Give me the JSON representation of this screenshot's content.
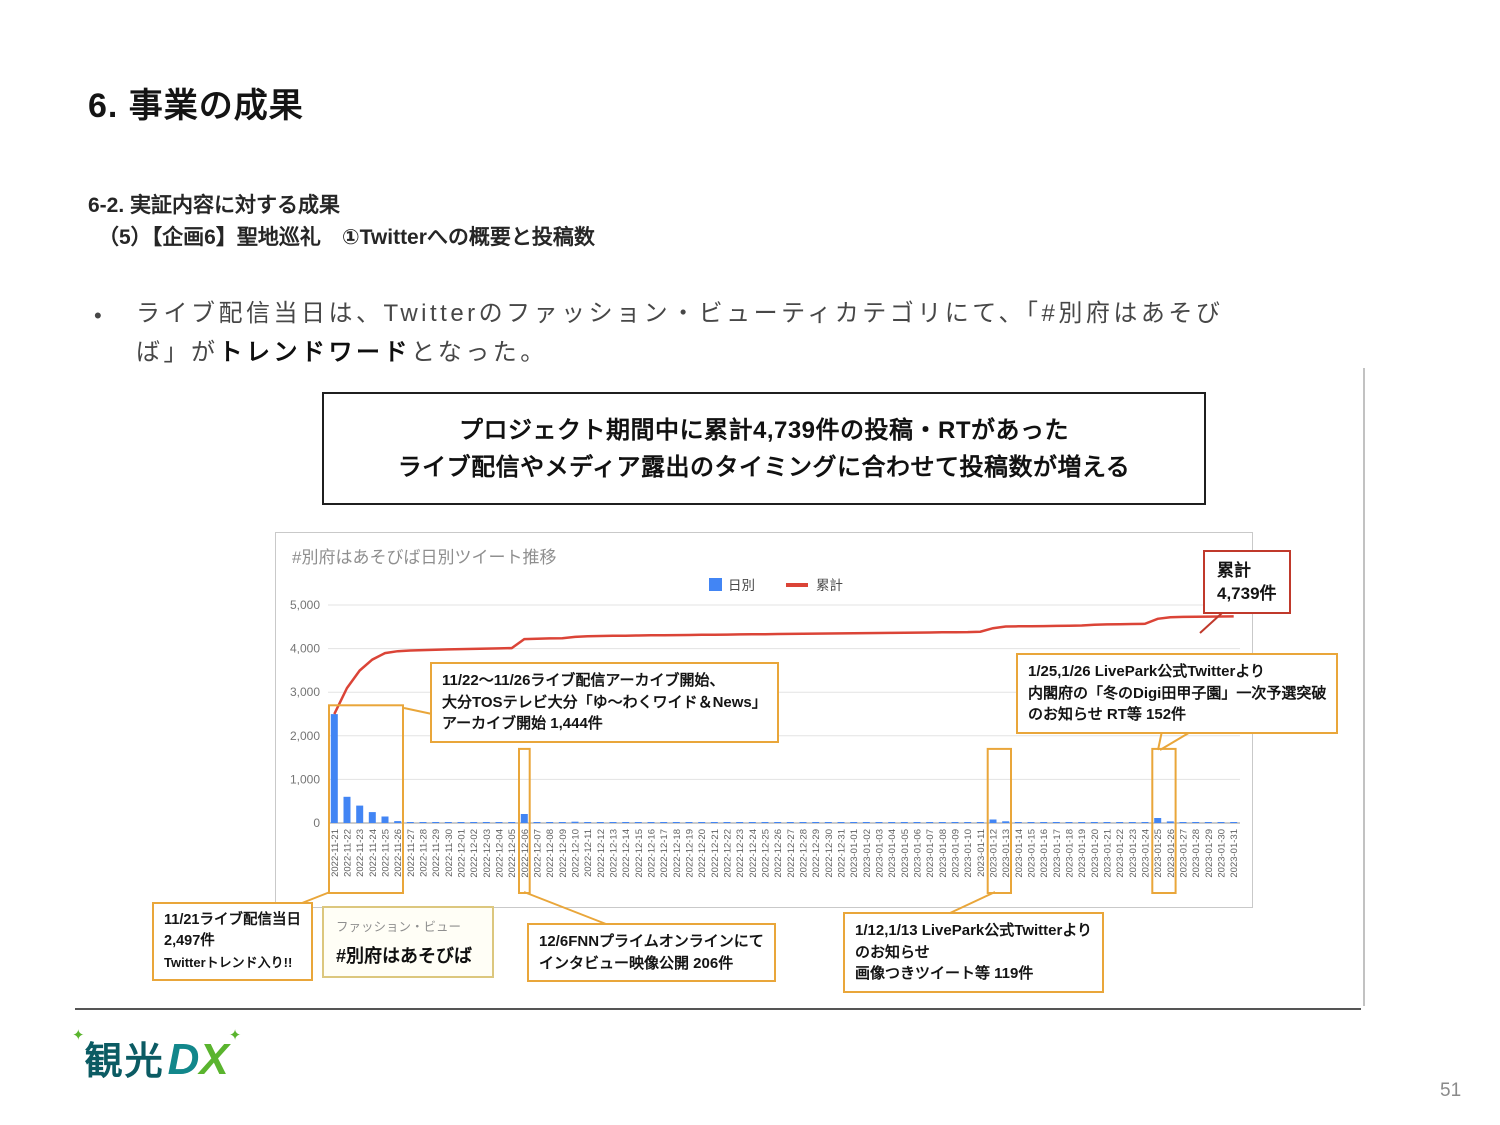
{
  "slide": {
    "title": "6. 事業の成果",
    "subtitle1": "6-2. 実証内容に対する成果",
    "subtitle2": "（5）【企画6】聖地巡礼　①Twitterへの概要と投稿数",
    "bullet": {
      "marker": "•",
      "line1": "ライブ配信当日は、Twitterのファッション・ビューティカテゴリにて、「#別府はあそび",
      "line2_pre": "ば」が",
      "line2_bold": "トレンドワード",
      "line2_post": "となった。"
    },
    "page_number": "51",
    "logo": {
      "kanji": "観光",
      "d": "D",
      "x": "X",
      "sparkle": "✦"
    }
  },
  "headline": {
    "line1": "プロジェクト期間中に累計4,739件の投稿・RTがあった",
    "line2": "ライブ配信やメディア露出のタイミングに合わせて投稿数が増える"
  },
  "callouts": {
    "cumulative": {
      "line1": "累計",
      "line2": "4,739件"
    },
    "archive": {
      "line1": "11/22～11/26ライブ配信アーカイブ開始、",
      "line2": "大分TOSテレビ大分「ゆ～わくワイド＆News」",
      "line3": "アーカイブ開始 1,444件"
    },
    "livepark_jan25": {
      "line1": "1/25,1/26 LivePark公式Twitterより",
      "line2": "内閣府の「冬のDigi田甲子園」一次予選突破",
      "line3": "のお知らせ RT等 152件"
    },
    "live_day": {
      "line1": "11/21ライブ配信当日",
      "line2": "2,497件",
      "line3": "Twitterトレンド入り!!"
    },
    "trend": {
      "category": "ファッション・ビュー",
      "hashtag": "#別府はあそびば"
    },
    "fnn": {
      "line1": "12/6FNNプライムオンラインにて",
      "line2": "インタビュー映像公開 206件"
    },
    "livepark_jan12": {
      "line1": "1/12,1/13 LivePark公式Twitterより",
      "line2": "のお知らせ",
      "line3": "画像つきツイート等 119件"
    }
  },
  "colors": {
    "accent_yellow": "#e9a63a",
    "accent_red": "#c0392b",
    "bar_blue": "#4285f4",
    "line_red": "#db4437"
  },
  "chart_data": {
    "type": "bar",
    "subtype": "bar+cumulative-line",
    "title": "#別府はあそびば日別ツイート推移",
    "legend": [
      {
        "label": "日別",
        "color": "#4285f4",
        "marker": "square"
      },
      {
        "label": "累計",
        "color": "#db4437",
        "marker": "line"
      }
    ],
    "legend_position": "top-center",
    "grid": true,
    "ylim": [
      0,
      5000
    ],
    "y_ticks": [
      0,
      1000,
      2000,
      3000,
      4000,
      5000
    ],
    "categories": [
      "2022-11-21",
      "2022-11-22",
      "2022-11-23",
      "2022-11-24",
      "2022-11-25",
      "2022-11-26",
      "2022-11-27",
      "2022-11-28",
      "2022-11-29",
      "2022-11-30",
      "2022-12-01",
      "2022-12-02",
      "2022-12-03",
      "2022-12-04",
      "2022-12-05",
      "2022-12-06",
      "2022-12-07",
      "2022-12-08",
      "2022-12-09",
      "2022-12-10",
      "2022-12-11",
      "2022-12-12",
      "2022-12-13",
      "2022-12-14",
      "2022-12-15",
      "2022-12-16",
      "2022-12-17",
      "2022-12-18",
      "2022-12-19",
      "2022-12-20",
      "2022-12-21",
      "2022-12-22",
      "2022-12-23",
      "2022-12-24",
      "2022-12-25",
      "2022-12-26",
      "2022-12-27",
      "2022-12-28",
      "2022-12-29",
      "2022-12-30",
      "2022-12-31",
      "2023-01-01",
      "2023-01-02",
      "2023-01-03",
      "2023-01-04",
      "2023-01-05",
      "2023-01-06",
      "2023-01-07",
      "2023-01-08",
      "2023-01-09",
      "2023-01-10",
      "2023-01-11",
      "2023-01-12",
      "2023-01-13",
      "2023-01-14",
      "2023-01-15",
      "2023-01-16",
      "2023-01-17",
      "2023-01-18",
      "2023-01-19",
      "2023-01-20",
      "2023-01-21",
      "2023-01-22",
      "2023-01-23",
      "2023-01-24",
      "2023-01-25",
      "2023-01-26",
      "2023-01-27",
      "2023-01-28",
      "2023-01-29",
      "2023-01-30",
      "2023-01-31"
    ],
    "series": [
      {
        "name": "日別",
        "type": "bar",
        "color": "#4285f4",
        "values": [
          2497,
          600,
          400,
          250,
          150,
          44,
          15,
          10,
          8,
          8,
          6,
          6,
          5,
          5,
          8,
          206,
          10,
          6,
          5,
          30,
          15,
          5,
          4,
          4,
          4,
          3,
          3,
          3,
          3,
          3,
          3,
          3,
          3,
          3,
          3,
          3,
          3,
          3,
          3,
          3,
          3,
          3,
          3,
          3,
          3,
          3,
          3,
          3,
          3,
          3,
          3,
          8,
          80,
          39,
          5,
          3,
          3,
          3,
          4,
          6,
          15,
          10,
          5,
          4,
          5,
          115,
          37,
          5,
          4,
          3,
          3,
          3
        ]
      },
      {
        "name": "累計",
        "type": "line",
        "color": "#db4437",
        "derived": "cumulative_of_daily",
        "final_value": 4739
      }
    ],
    "highlights": [
      {
        "from_index": 0,
        "to_index": 5,
        "top_value": 2700,
        "note": "11/21-11/26"
      },
      {
        "from_index": 15,
        "to_index": 15,
        "top_value": 1700,
        "note": "12/6"
      },
      {
        "from_index": 52,
        "to_index": 53,
        "top_value": 1700,
        "note": "1/12-1/13"
      },
      {
        "from_index": 65,
        "to_index": 66,
        "top_value": 1700,
        "note": "1/25-1/26"
      }
    ]
  }
}
